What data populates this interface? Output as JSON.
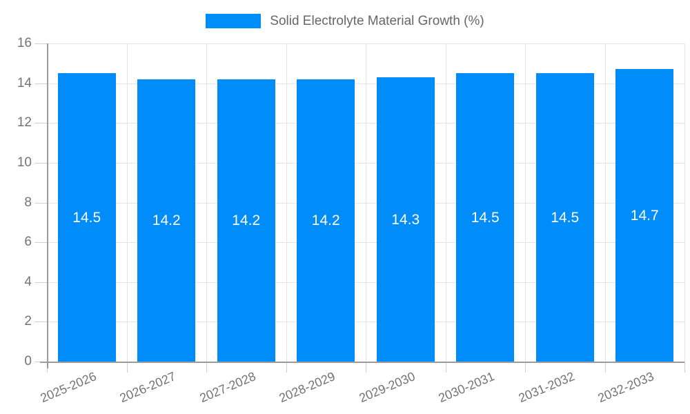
{
  "legend": {
    "series_label": "Solid Electrolyte Material Growth (%)"
  },
  "colors": {
    "bar": "#008DFA",
    "grid": "#e4e4e4",
    "axis": "#9b9b9b",
    "tick": "#cfcfcf",
    "tick_text": "#737373",
    "legend_text": "#666666",
    "bar_label_text": "#ffffff",
    "background": "#ffffff"
  },
  "chart_data": {
    "type": "bar",
    "title": "",
    "xlabel": "",
    "ylabel": "",
    "categories": [
      "2025-2026",
      "2026-2027",
      "2027-2028",
      "2028-2029",
      "2029-2030",
      "2030-2031",
      "2031-2032",
      "2032-2033"
    ],
    "series": [
      {
        "name": "Solid Electrolyte Material Growth (%)",
        "values": [
          14.5,
          14.2,
          14.2,
          14.2,
          14.3,
          14.5,
          14.5,
          14.7
        ],
        "value_labels": [
          "14.5",
          "14.2",
          "14.2",
          "14.2",
          "14.3",
          "14.5",
          "14.5",
          "14.7"
        ]
      }
    ],
    "ylim": [
      0,
      16
    ],
    "yticks": [
      0,
      2,
      4,
      6,
      8,
      10,
      12,
      14,
      16
    ],
    "ytick_labels": [
      "0",
      "2",
      "4",
      "6",
      "8",
      "10",
      "12",
      "14",
      "16"
    ],
    "grid": true,
    "legend_position": "top",
    "value_label_position": "center"
  }
}
